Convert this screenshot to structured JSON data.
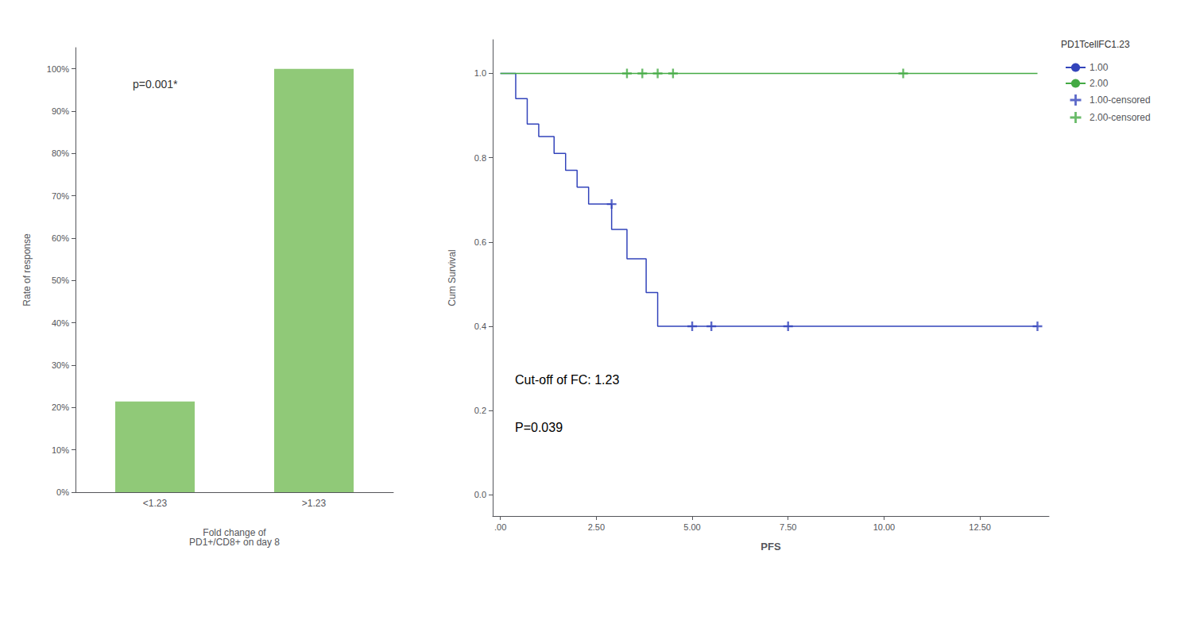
{
  "chart_data": [
    {
      "type": "bar",
      "categories": [
        "<1.23",
        ">1.23"
      ],
      "values": [
        0.214,
        1.0
      ],
      "color": "#90C978",
      "xlabel": "Fold change of\nPD1+/CD8+ on day 8",
      "ylabel": "Rate of response",
      "ylim": [
        0,
        1.05
      ],
      "yticks": [
        {
          "value": 0.0,
          "label": "0%"
        },
        {
          "value": 0.1,
          "label": "10%"
        },
        {
          "value": 0.2,
          "label": "20%"
        },
        {
          "value": 0.3,
          "label": "30%"
        },
        {
          "value": 0.4,
          "label": "40%"
        },
        {
          "value": 0.5,
          "label": "50%"
        },
        {
          "value": 0.6,
          "label": "60%"
        },
        {
          "value": 0.7,
          "label": "70%"
        },
        {
          "value": 0.8,
          "label": "80%"
        },
        {
          "value": 0.9,
          "label": "90%"
        },
        {
          "value": 1.0,
          "label": "100%"
        }
      ],
      "annotations": [
        "p=0.001*"
      ],
      "grid": false
    },
    {
      "type": "line",
      "xlabel": "PFS",
      "ylabel": "Cum Survival",
      "xlim": [
        -0.2,
        14.3
      ],
      "xticks": [
        {
          "value": 0.0,
          "label": ".00"
        },
        {
          "value": 2.5,
          "label": "2.50"
        },
        {
          "value": 5.0,
          "label": "5.00"
        },
        {
          "value": 7.5,
          "label": "7.50"
        },
        {
          "value": 10.0,
          "label": "10.00"
        },
        {
          "value": 12.5,
          "label": "12.50"
        }
      ],
      "ylim": [
        -0.05,
        1.08
      ],
      "yticks": [
        {
          "value": 0.0,
          "label": "0.0"
        },
        0.2,
        0.4,
        0.6,
        0.8,
        {
          "value": 1.0,
          "label": "1.0"
        }
      ],
      "annotations": [
        "Cut-off of FC: 1.23",
        "P=0.039"
      ],
      "legend_title": "PD1TcellFC1.23",
      "legend": "right",
      "grid": false,
      "series": [
        {
          "name": "1.00",
          "type": "line",
          "line_style": "step",
          "color": "#3344BB",
          "x": [
            0,
            0.4,
            0.7,
            1.0,
            1.4,
            1.7,
            2.0,
            2.3,
            2.6,
            2.9,
            3.1,
            3.3,
            3.6,
            3.8,
            4.1,
            4.8,
            5.2,
            14.0
          ],
          "values": [
            1.0,
            0.94,
            0.88,
            0.85,
            0.81,
            0.77,
            0.73,
            0.69,
            0.69,
            0.63,
            0.63,
            0.56,
            0.56,
            0.48,
            0.4,
            0.4,
            0.4,
            0.4
          ]
        },
        {
          "name": "2.00",
          "type": "line",
          "line_style": "step",
          "color": "#44AA44",
          "x": [
            0,
            14.0
          ],
          "values": [
            1.0,
            1.0
          ]
        },
        {
          "name": "1.00-censored",
          "type": "scatter",
          "marker": "plus",
          "color": "#3344BB",
          "x": [
            2.9,
            5.0,
            5.5,
            7.5,
            14.0
          ],
          "values": [
            0.69,
            0.4,
            0.4,
            0.4,
            0.4
          ]
        },
        {
          "name": "2.00-censored",
          "type": "scatter",
          "marker": "plus",
          "color": "#44AA44",
          "x": [
            3.3,
            3.7,
            4.1,
            4.5,
            10.5
          ],
          "values": [
            1.0,
            1.0,
            1.0,
            1.0,
            1.0
          ]
        }
      ]
    }
  ]
}
